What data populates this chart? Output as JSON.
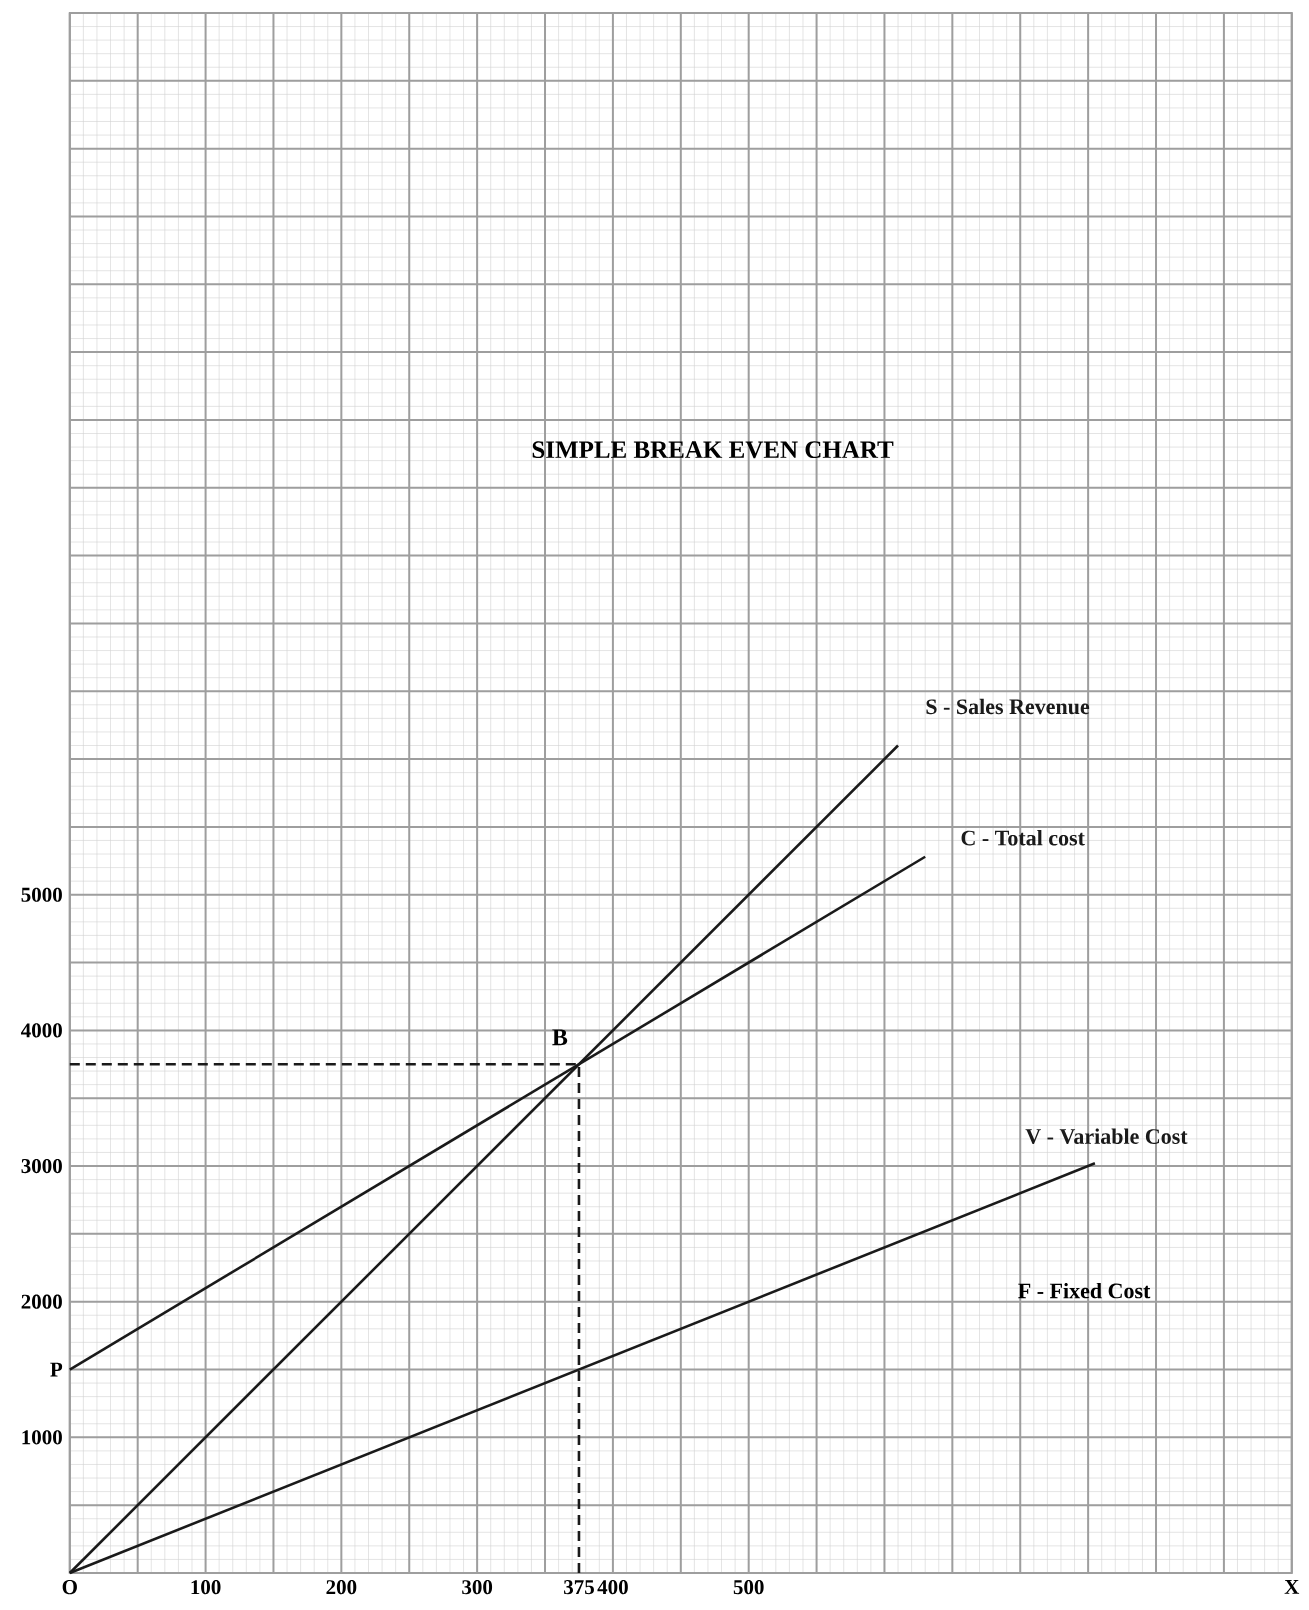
{
  "chart_data": {
    "type": "line",
    "title": "SIMPLE BREAK EVEN CHART",
    "xlim": [
      0,
      900
    ],
    "ylim": [
      0,
      11500
    ],
    "xticks": [
      {
        "value": 0,
        "label": "O"
      },
      100,
      200,
      300,
      375,
      400,
      500,
      {
        "value": 900,
        "label": "X"
      }
    ],
    "yticks": [
      1000,
      {
        "value": 1500,
        "label": "P"
      },
      2000,
      3000,
      4000,
      5000
    ],
    "grid": true,
    "line_style": "solid",
    "marker": "none",
    "series": [
      {
        "name": "S - Sales Revenue",
        "color": "#1a1a1a",
        "x": [
          0,
          610
        ],
        "values": [
          0,
          6100
        ]
      },
      {
        "name": "C - Total cost",
        "color": "#1a1a1a",
        "x": [
          0,
          630
        ],
        "values": [
          1500,
          5280
        ]
      },
      {
        "name": "V - Variable Cost",
        "color": "#1a1a1a",
        "x": [
          0,
          755
        ],
        "values": [
          0,
          3020
        ]
      },
      {
        "color": "#1a1a1a",
        "line_style": "dashed",
        "x": [
          0,
          375
        ],
        "values": [
          3750,
          3750
        ]
      },
      {
        "color": "#1a1a1a",
        "line_style": "dashed",
        "x": [
          375,
          375
        ],
        "values": [
          0,
          3750
        ]
      }
    ],
    "annotations": [
      {
        "text": "B",
        "x": 375,
        "y": 3750
      },
      "F - Fixed Cost"
    ]
  }
}
